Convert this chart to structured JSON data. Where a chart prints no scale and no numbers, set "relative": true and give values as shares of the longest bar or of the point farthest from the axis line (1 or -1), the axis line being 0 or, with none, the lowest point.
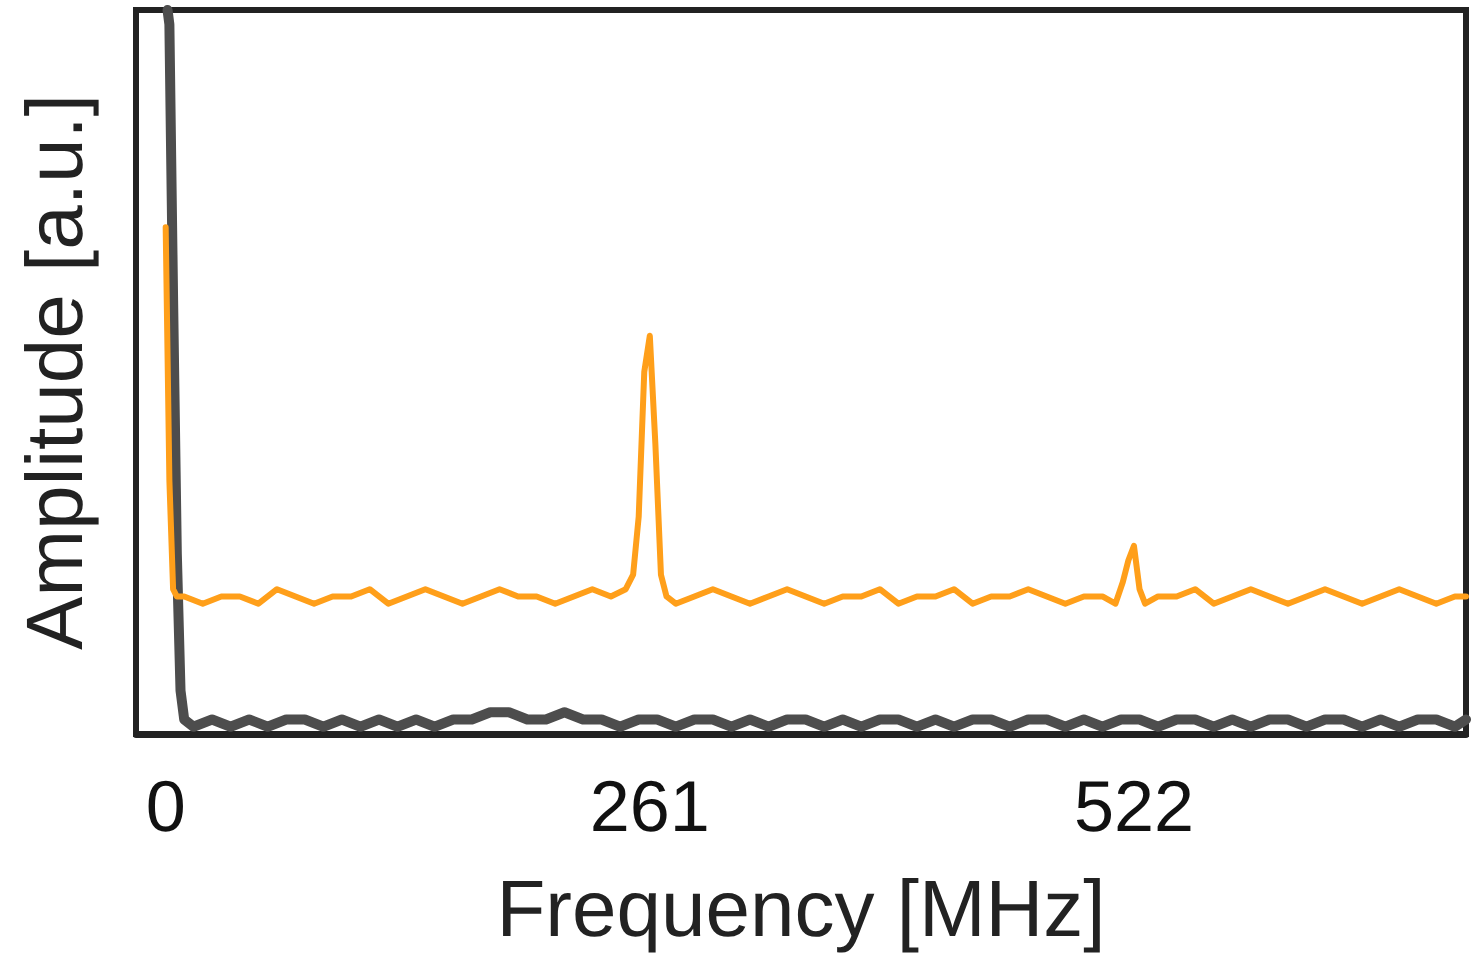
{
  "chart_data": {
    "type": "line",
    "xlabel": "Frequency [MHz]",
    "ylabel": "Amplitude [a.u.]",
    "relative": true,
    "xlim": [
      -16,
      701
    ],
    "xticks": [
      0,
      261,
      522
    ],
    "grid": false,
    "marker": "none",
    "line_style": "solid",
    "series": [
      {
        "color": "#ff9f1a",
        "x": [
          0,
          2,
          4,
          6,
          10,
          20,
          30,
          40,
          50,
          60,
          70,
          80,
          90,
          100,
          110,
          120,
          130,
          140,
          150,
          160,
          170,
          180,
          190,
          200,
          210,
          220,
          230,
          240,
          248,
          252,
          255,
          258,
          261,
          264,
          267,
          270,
          275,
          285,
          295,
          305,
          315,
          325,
          335,
          345,
          355,
          365,
          375,
          385,
          395,
          405,
          415,
          425,
          435,
          445,
          455,
          465,
          475,
          485,
          495,
          505,
          512,
          516,
          519,
          522,
          525,
          528,
          535,
          545,
          555,
          565,
          575,
          585,
          595,
          605,
          615,
          625,
          635,
          645,
          655,
          665,
          675,
          685,
          695,
          701
        ],
        "values": [
          0.7,
          0.35,
          0.2,
          0.19,
          0.19,
          0.18,
          0.19,
          0.19,
          0.18,
          0.2,
          0.19,
          0.18,
          0.19,
          0.19,
          0.2,
          0.18,
          0.19,
          0.2,
          0.19,
          0.18,
          0.19,
          0.2,
          0.19,
          0.19,
          0.18,
          0.19,
          0.2,
          0.19,
          0.2,
          0.22,
          0.3,
          0.5,
          0.55,
          0.4,
          0.22,
          0.19,
          0.18,
          0.19,
          0.2,
          0.19,
          0.18,
          0.19,
          0.2,
          0.19,
          0.18,
          0.19,
          0.19,
          0.2,
          0.18,
          0.19,
          0.19,
          0.2,
          0.18,
          0.19,
          0.19,
          0.2,
          0.19,
          0.18,
          0.19,
          0.19,
          0.18,
          0.21,
          0.24,
          0.26,
          0.2,
          0.18,
          0.19,
          0.19,
          0.2,
          0.18,
          0.19,
          0.2,
          0.19,
          0.18,
          0.19,
          0.2,
          0.19,
          0.18,
          0.19,
          0.2,
          0.19,
          0.18,
          0.19,
          0.19
        ]
      },
      {
        "color": "#4d4d4d",
        "x": [
          1,
          2,
          4,
          6,
          8,
          10,
          15,
          25,
          35,
          45,
          55,
          65,
          75,
          85,
          95,
          105,
          115,
          125,
          135,
          145,
          155,
          165,
          175,
          185,
          195,
          205,
          215,
          225,
          235,
          245,
          255,
          265,
          275,
          285,
          295,
          305,
          315,
          325,
          335,
          345,
          355,
          365,
          375,
          385,
          395,
          405,
          415,
          425,
          435,
          445,
          455,
          465,
          475,
          485,
          495,
          505,
          515,
          525,
          535,
          545,
          555,
          565,
          575,
          585,
          595,
          605,
          615,
          625,
          635,
          645,
          655,
          665,
          675,
          685,
          695,
          701
        ],
        "values": [
          1,
          0.98,
          0.6,
          0.25,
          0.06,
          0.02,
          0.01,
          0.02,
          0.01,
          0.02,
          0.01,
          0.02,
          0.02,
          0.01,
          0.02,
          0.01,
          0.02,
          0.01,
          0.02,
          0.01,
          0.02,
          0.02,
          0.03,
          0.03,
          0.02,
          0.02,
          0.03,
          0.02,
          0.02,
          0.01,
          0.02,
          0.02,
          0.01,
          0.02,
          0.02,
          0.01,
          0.02,
          0.01,
          0.02,
          0.02,
          0.01,
          0.02,
          0.01,
          0.02,
          0.02,
          0.01,
          0.02,
          0.01,
          0.02,
          0.02,
          0.01,
          0.02,
          0.02,
          0.01,
          0.02,
          0.01,
          0.02,
          0.02,
          0.01,
          0.02,
          0.02,
          0.01,
          0.02,
          0.01,
          0.02,
          0.02,
          0.01,
          0.02,
          0.02,
          0.01,
          0.02,
          0.01,
          0.02,
          0.02,
          0.01,
          0.02
        ]
      }
    ]
  }
}
